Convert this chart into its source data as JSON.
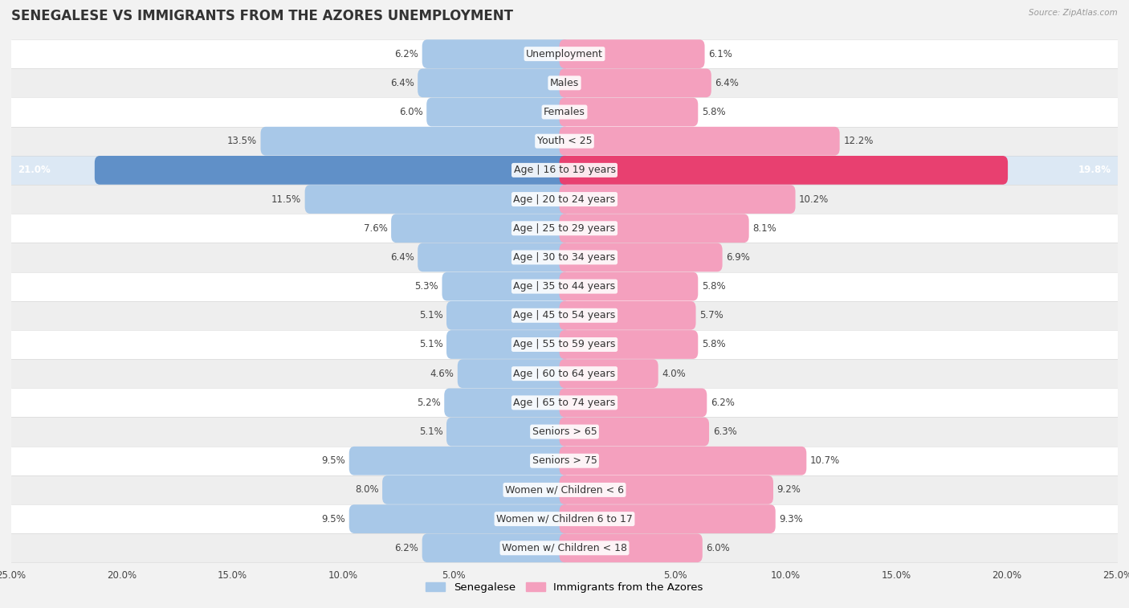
{
  "title": "SENEGALESE VS IMMIGRANTS FROM THE AZORES UNEMPLOYMENT",
  "source": "Source: ZipAtlas.com",
  "categories": [
    "Unemployment",
    "Males",
    "Females",
    "Youth < 25",
    "Age | 16 to 19 years",
    "Age | 20 to 24 years",
    "Age | 25 to 29 years",
    "Age | 30 to 34 years",
    "Age | 35 to 44 years",
    "Age | 45 to 54 years",
    "Age | 55 to 59 years",
    "Age | 60 to 64 years",
    "Age | 65 to 74 years",
    "Seniors > 65",
    "Seniors > 75",
    "Women w/ Children < 6",
    "Women w/ Children 6 to 17",
    "Women w/ Children < 18"
  ],
  "senegalese": [
    6.2,
    6.4,
    6.0,
    13.5,
    21.0,
    11.5,
    7.6,
    6.4,
    5.3,
    5.1,
    5.1,
    4.6,
    5.2,
    5.1,
    9.5,
    8.0,
    9.5,
    6.2
  ],
  "azores": [
    6.1,
    6.4,
    5.8,
    12.2,
    19.8,
    10.2,
    8.1,
    6.9,
    5.8,
    5.7,
    5.8,
    4.0,
    6.2,
    6.3,
    10.7,
    9.2,
    9.3,
    6.0
  ],
  "senegalese_color_normal": "#a8c8e8",
  "azores_color_normal": "#f4a0be",
  "senegalese_color_highlight": "#6090c8",
  "azores_color_highlight": "#e84070",
  "row_colors": [
    "#ffffff",
    "#eeeeee"
  ],
  "highlight_row_color": "#dce8f4",
  "highlight_indices": [
    4
  ],
  "background_color": "#f2f2f2",
  "xlim": 25.0,
  "bar_height": 0.52,
  "title_fontsize": 12,
  "label_fontsize": 9,
  "value_fontsize": 8.5,
  "legend_fontsize": 9.5,
  "tick_fontsize": 8.5
}
